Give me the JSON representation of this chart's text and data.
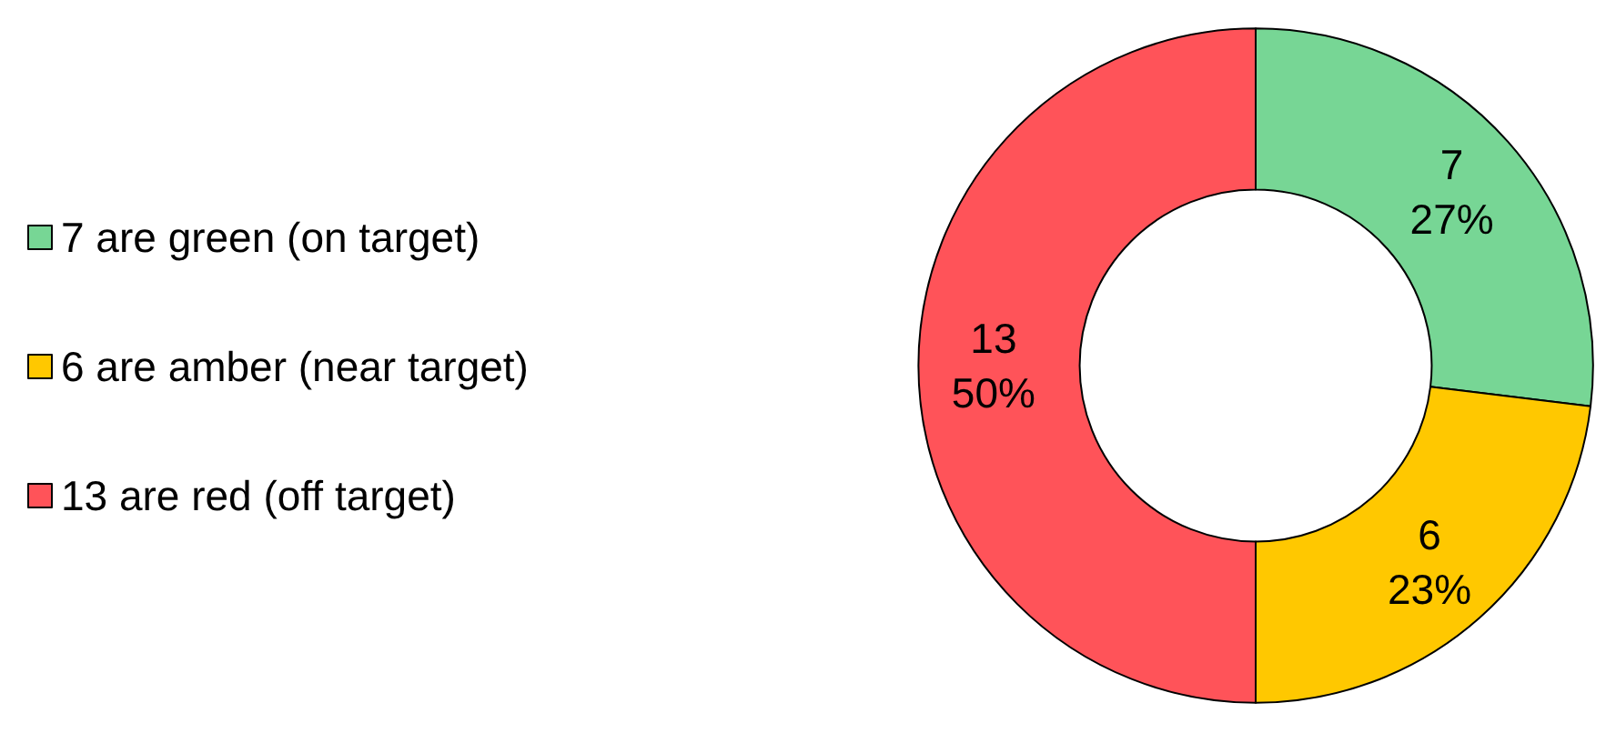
{
  "chart_data": {
    "type": "donut",
    "categories": [
      "7 are green (on target)",
      "6 are amber (near target)",
      "13 are red (off target)"
    ],
    "values": [
      7,
      6,
      13
    ],
    "colors": [
      "#77d695",
      "#ffc800",
      "#ff5359"
    ],
    "value_labels": [
      "7\n27%",
      "6\n23%",
      "13\n50%"
    ],
    "legend": "left"
  }
}
